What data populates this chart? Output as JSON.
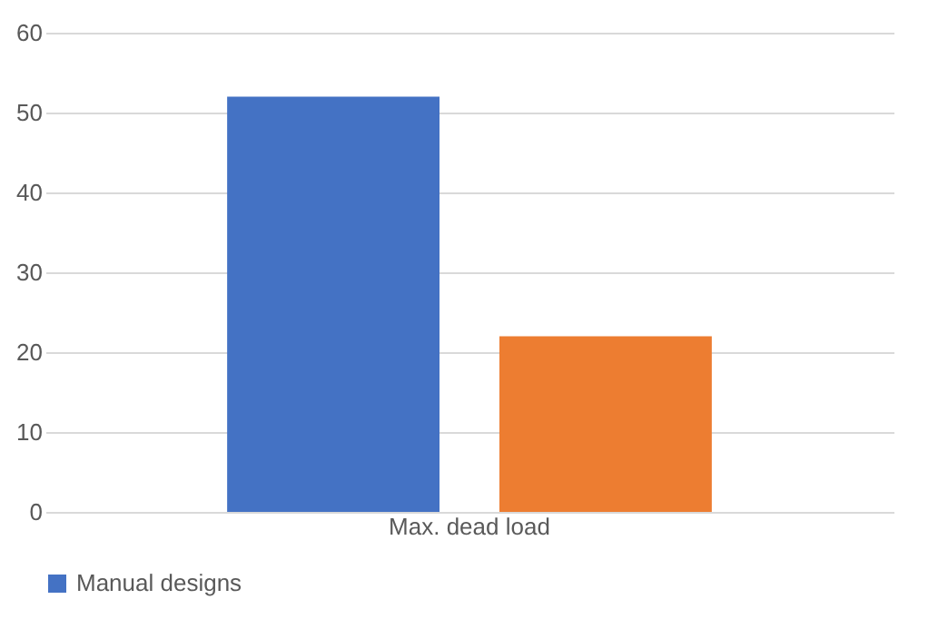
{
  "chart_data": {
    "type": "bar",
    "categories": [
      "Max. dead load"
    ],
    "series": [
      {
        "name": "Manual designs",
        "color": "#4472c4",
        "values": [
          52
        ]
      },
      {
        "color": "#ed7d31",
        "values": [
          22
        ]
      }
    ],
    "ylim": [
      0,
      60
    ],
    "yticks": [
      0,
      10,
      20,
      30,
      40,
      50,
      60
    ],
    "grid": "y",
    "legend": "bottom"
  }
}
